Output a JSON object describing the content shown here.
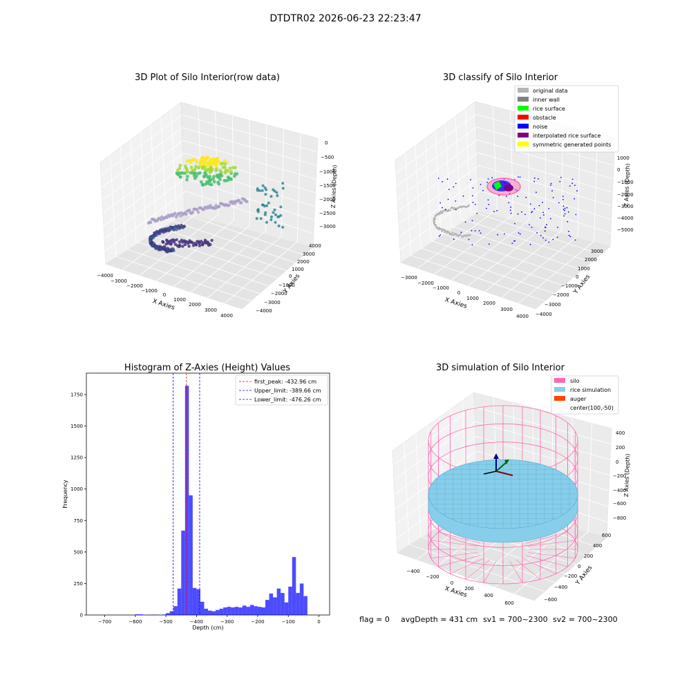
{
  "suptitle": "DTDTR02 2026-06-23 22:23:47",
  "footer": {
    "flag": "flag = 0",
    "avg": "avgDepth = 431 cm",
    "sv1": "sv1 = 700~2300",
    "sv2": "sv2 = 700~2300"
  },
  "colors": {
    "silo": "#ff69b4",
    "rice_simulation": "#87ceeb",
    "auger": "#ff4500",
    "hist_bar": "#0000ff",
    "viridis_dark": "#440154",
    "viridis_mid": "#21918c",
    "viridis_light": "#fde725"
  },
  "chart_data": [
    {
      "type": "scatter",
      "projection": "3d",
      "title": "3D Plot of Silo Interior(row data)",
      "xlabel": "X Axies",
      "ylabel": "Y Axies",
      "zlabel": "Z Axies (Depth)",
      "xticks": [
        "−4000",
        "−3000",
        "−2000",
        "−1000",
        "0",
        "1000",
        "2000",
        "3000",
        "4000"
      ],
      "yticks": [
        "−4000",
        "−3000",
        "−2000",
        "−1000",
        "0",
        "1000",
        "2000",
        "3000",
        "4000"
      ],
      "zticks": [
        "0",
        "−500",
        "−1000",
        "−1500",
        "−2000",
        "−2500",
        "−3000"
      ],
      "xlim": [
        -4000,
        4000
      ],
      "ylim": [
        -4000,
        4000
      ],
      "zlim": [
        -3500,
        0
      ],
      "colormap": "viridis",
      "grid": true
    },
    {
      "type": "scatter",
      "projection": "3d",
      "title": "3D classify of Silo Interior",
      "xlabel": "X Axies",
      "ylabel": "Y Axies",
      "zlabel": "Z Axies (Depth)",
      "xticks": [
        "−3000",
        "−2000",
        "−1000",
        "0",
        "1000",
        "2000",
        "3000",
        "4000"
      ],
      "yticks": [
        "−4000",
        "−3000",
        "−2000",
        "−1000",
        "0",
        "1000",
        "2000",
        "3000"
      ],
      "zticks": [
        "1000",
        "0",
        "−1000",
        "−2000",
        "−3000",
        "−4000",
        "−5000"
      ],
      "legend_position": "top-right",
      "legend": [
        {
          "label": "original data",
          "color": "#b4b4b4"
        },
        {
          "label": "inner wall",
          "color": "#808080"
        },
        {
          "label": "rice surface",
          "color": "#00ff00"
        },
        {
          "label": "obstacle",
          "color": "#ff0000"
        },
        {
          "label": "noise",
          "color": "#0000ff"
        },
        {
          "label": "interpolated rice surface",
          "color": "#800080"
        },
        {
          "label": "symmetric generated points",
          "color": "#ffff00"
        }
      ],
      "grid": true
    },
    {
      "type": "bar",
      "title": "Histogram of Z-Axies (Height) Values",
      "xlabel": "Depth (cm)",
      "ylabel": "Frequency",
      "xlim": [
        -760,
        35
      ],
      "ylim": [
        0,
        1920
      ],
      "xticks": [
        -700,
        -600,
        -500,
        -400,
        -300,
        -200,
        -100,
        0
      ],
      "xtick_labels": [
        "−700",
        "−600",
        "−500",
        "−400",
        "−300",
        "−200",
        "−100",
        "0"
      ],
      "yticks": [
        0,
        250,
        500,
        750,
        1000,
        1250,
        1500,
        1750
      ],
      "ytick_labels": [
        "0",
        "250",
        "500",
        "750",
        "1000",
        "1250",
        "1500",
        "1750"
      ],
      "bin_width": 12.5,
      "bars": [
        {
          "x0": -600,
          "value": 5
        },
        {
          "x0": -587.5,
          "value": 5
        },
        {
          "x0": -550,
          "value": 3
        },
        {
          "x0": -537.5,
          "value": 3
        },
        {
          "x0": -512.5,
          "value": 4
        },
        {
          "x0": -500,
          "value": 15
        },
        {
          "x0": -487.5,
          "value": 30
        },
        {
          "x0": -475,
          "value": 70
        },
        {
          "x0": -462.5,
          "value": 210
        },
        {
          "x0": -450,
          "value": 670
        },
        {
          "x0": -437.5,
          "value": 1820
        },
        {
          "x0": -425,
          "value": 950
        },
        {
          "x0": -412.5,
          "value": 215
        },
        {
          "x0": -400,
          "value": 205
        },
        {
          "x0": -387.5,
          "value": 105
        },
        {
          "x0": -375,
          "value": 50
        },
        {
          "x0": -362.5,
          "value": 35
        },
        {
          "x0": -350,
          "value": 30
        },
        {
          "x0": -337.5,
          "value": 40
        },
        {
          "x0": -325,
          "value": 50
        },
        {
          "x0": -312.5,
          "value": 60
        },
        {
          "x0": -300,
          "value": 65
        },
        {
          "x0": -287.5,
          "value": 60
        },
        {
          "x0": -275,
          "value": 65
        },
        {
          "x0": -262.5,
          "value": 60
        },
        {
          "x0": -250,
          "value": 75
        },
        {
          "x0": -237.5,
          "value": 65
        },
        {
          "x0": -225,
          "value": 80
        },
        {
          "x0": -212.5,
          "value": 70
        },
        {
          "x0": -200,
          "value": 65
        },
        {
          "x0": -187.5,
          "value": 60
        },
        {
          "x0": -175,
          "value": 120
        },
        {
          "x0": -162.5,
          "value": 170
        },
        {
          "x0": -150,
          "value": 140
        },
        {
          "x0": -137.5,
          "value": 210
        },
        {
          "x0": -125,
          "value": 175
        },
        {
          "x0": -112.5,
          "value": 100
        },
        {
          "x0": -100,
          "value": 225
        },
        {
          "x0": -87.5,
          "value": 460
        },
        {
          "x0": -75,
          "value": 175
        },
        {
          "x0": -62.5,
          "value": 250
        },
        {
          "x0": -50,
          "value": 150
        },
        {
          "x0": -37.5,
          "value": 0
        }
      ],
      "vlines": [
        {
          "label": "first_peak: -432.96 cm",
          "x": -432.96,
          "color": "#ff0000"
        },
        {
          "label": "Upper_limit: -389.66 cm",
          "x": -389.66,
          "color": "#0000ff"
        },
        {
          "label": "Lower_limit: -476.26 cm",
          "x": -476.26,
          "color": "#0000ff"
        }
      ],
      "legend_position": "top-right",
      "grid": false
    },
    {
      "type": "scatter",
      "projection": "3d",
      "title": "3D simulation of Silo Interior",
      "xlabel": "X Axies",
      "ylabel": "Y Axies",
      "zlabel": "Z Axies (Depth)",
      "xticks": [
        "−400",
        "−200",
        "0",
        "200",
        "400",
        "600"
      ],
      "yticks": [
        "−600",
        "−400",
        "−200",
        "0",
        "200",
        "400",
        "600"
      ],
      "zticks": [
        "400",
        "200",
        "0",
        "−200",
        "−400",
        "−600",
        "−800"
      ],
      "legend_position": "top-right",
      "legend": [
        {
          "label": "silo",
          "color": "#ff69b4"
        },
        {
          "label": "rice simulation",
          "color": "#87ceeb"
        },
        {
          "label": "auger",
          "color": "#ff4500"
        },
        {
          "label": "center(100,-50)",
          "color": ""
        }
      ],
      "grid": true
    }
  ]
}
